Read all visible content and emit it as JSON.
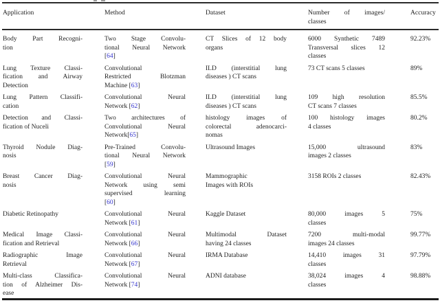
{
  "page": {
    "background": "#ffffff"
  },
  "colors": {
    "citation_blue": "#3333cc",
    "text": "#1e1e1e",
    "rule": "#2a2a2a"
  },
  "table": {
    "header": [
      {
        "key": "application",
        "lines": [
          "Application"
        ]
      },
      {
        "key": "method",
        "lines": [
          "Method"
        ]
      },
      {
        "key": "dataset",
        "lines": [
          "Dataset"
        ]
      },
      {
        "key": "number",
        "lines": [
          "Number of images/",
          "classes"
        ]
      },
      {
        "key": "accuracy",
        "lines": [
          "Accuracy"
        ]
      }
    ],
    "rows": [
      {
        "application": [
          "Body Part Recogni-",
          "tion"
        ],
        "method": [
          "Two Stage Convolu-",
          "tional Neural Network",
          "[64]"
        ],
        "dataset": [
          "CT Slices of 12 body",
          "organs"
        ],
        "number": [
          "6000 Synthetic 7489",
          "Transversal slices 12",
          "classes"
        ],
        "accuracy": "92.23%"
      },
      {
        "application": [
          "Lung Texture Classi-",
          "fication and Airway",
          "Detection"
        ],
        "method": [
          "Convolutional",
          "Restricted Blotzman",
          "Machine [63]"
        ],
        "dataset": [
          "ILD (interstitial lung",
          "diseases ) CT scans"
        ],
        "number": [
          "73 CT scans 5 classes"
        ],
        "accuracy": "89%"
      },
      {
        "application": [
          "Lung Pattern Classifi-",
          "cation"
        ],
        "method": [
          "Convolutional Neural",
          "Network [62]"
        ],
        "dataset": [
          "ILD (interstitial lung",
          "diseases ) CT scans"
        ],
        "number": [
          "109 high resolution",
          "CT scans 7 classes"
        ],
        "accuracy": "85.5%"
      },
      {
        "application": [
          "Detection and Classi-",
          "fication of Nuceli"
        ],
        "method": [
          "Two architectures of",
          "Convolutional Neural",
          "Network[65]"
        ],
        "dataset": [
          "histology images of",
          "colorectal adenocarci-",
          "nomas"
        ],
        "number": [
          "100 histology images",
          "4 classes"
        ],
        "accuracy": "80.2%"
      },
      {
        "application": [
          "Thyroid Nodule Diag-",
          "nosis"
        ],
        "method": [
          "Pre-Trained Convolu-",
          "tional Neural Network",
          "[59]"
        ],
        "dataset": [
          "Ultrasound Images"
        ],
        "number": [
          "15,000 ultrasound",
          "images 2 classes"
        ],
        "accuracy": "83%"
      },
      {
        "application": [
          "Breast Cancer Diag-",
          "nosis"
        ],
        "method": [
          "Convolutional Neural",
          "Network using semi",
          "supervised learning",
          "[60]"
        ],
        "dataset": [
          "Mammographic",
          "Images with ROIs"
        ],
        "number": [
          "3158 ROIs 2 classes"
        ],
        "accuracy": "82.43%"
      },
      {
        "application": [
          "Diabetic Retinopathy"
        ],
        "method": [
          "Convolutional Neural",
          "Network [61]"
        ],
        "dataset": [
          "Kaggle Dataset"
        ],
        "number": [
          "80,000 images 5",
          "classes"
        ],
        "accuracy": "75%"
      },
      {
        "application": [
          "Medical Image Classi-",
          "fication and Retrieval"
        ],
        "method": [
          "Convolutional Neural",
          "Network [66]"
        ],
        "dataset": [
          "Multimodal Dataset",
          "having 24 classes"
        ],
        "number": [
          "7200 multi-modal",
          "images 24 classes"
        ],
        "accuracy": "99.77%"
      },
      {
        "application": [
          "Radiographic Image",
          "Retrieval"
        ],
        "method": [
          "Convolutional Neural",
          "Network [67]"
        ],
        "dataset": [
          "IRMA Database"
        ],
        "number": [
          "14,410 images 31",
          "classes"
        ],
        "accuracy": "97.79%"
      },
      {
        "application": [
          "Multi-class Classifica-",
          "tion of Alzheimer Dis-",
          "ease"
        ],
        "method": [
          "Convolutional Neural",
          "Network [74]"
        ],
        "dataset": [
          "ADNI database"
        ],
        "number": [
          "38,024 images 4",
          "classes"
        ],
        "accuracy": "98.88%"
      }
    ]
  }
}
